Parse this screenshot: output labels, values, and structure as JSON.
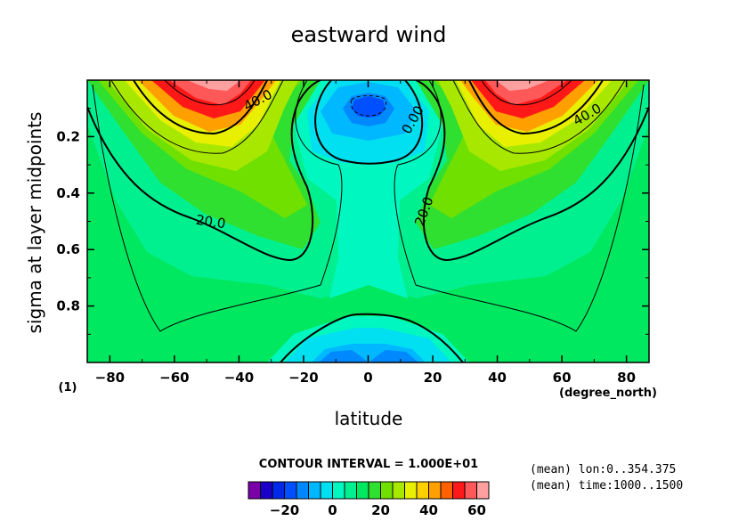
{
  "chart_data": {
    "type": "heatmap",
    "title": "eastward wind",
    "xlabel": "latitude",
    "ylabel": "sigma at layer midpoints",
    "x_unit_label": "(degree_north)",
    "y_unit_label": "(1)",
    "xlim": [
      -87,
      87
    ],
    "ylim": [
      0,
      1
    ],
    "y_inverted": true,
    "x_ticks": [
      -80,
      -60,
      -40,
      -20,
      0,
      20,
      40,
      60,
      80
    ],
    "x_tick_labels": [
      "−80",
      "−60",
      "−40",
      "−20",
      "0",
      "20",
      "40",
      "60",
      "80"
    ],
    "y_ticks": [
      0.2,
      0.4,
      0.6,
      0.8
    ],
    "y_tick_labels": [
      "0.2",
      "0.4",
      "0.6",
      "0.8"
    ],
    "contour_interval_text": "CONTOUR INTERVAL = 1.000E+01",
    "contour_labels": [
      "40.0",
      "0.00",
      "40.0",
      "20.0",
      "20.0"
    ],
    "fill_levels": [
      -30,
      -25,
      -20,
      -15,
      -10,
      -5,
      0,
      5,
      10,
      15,
      20,
      25,
      30,
      35,
      40,
      45,
      50,
      55,
      60
    ],
    "colorbar_colors": [
      "#7a00a8",
      "#1a00c8",
      "#0028e8",
      "#0050ff",
      "#0088ff",
      "#00b8ff",
      "#00e0f0",
      "#00f8c0",
      "#00f090",
      "#00e860",
      "#30e030",
      "#70e000",
      "#a8e800",
      "#e8f000",
      "#ffd000",
      "#ffa000",
      "#ff6000",
      "#ff1818",
      "#ff5858",
      "#ffa0a0"
    ],
    "colorbar_tick_values": [
      -20,
      0,
      20,
      40,
      60
    ],
    "colorbar_tick_labels": [
      "−20",
      "0",
      "20",
      "40",
      "60"
    ],
    "annotations": [
      "(mean) lon:0..354.375",
      "(mean) time:1000..1500"
    ],
    "grid": false
  }
}
